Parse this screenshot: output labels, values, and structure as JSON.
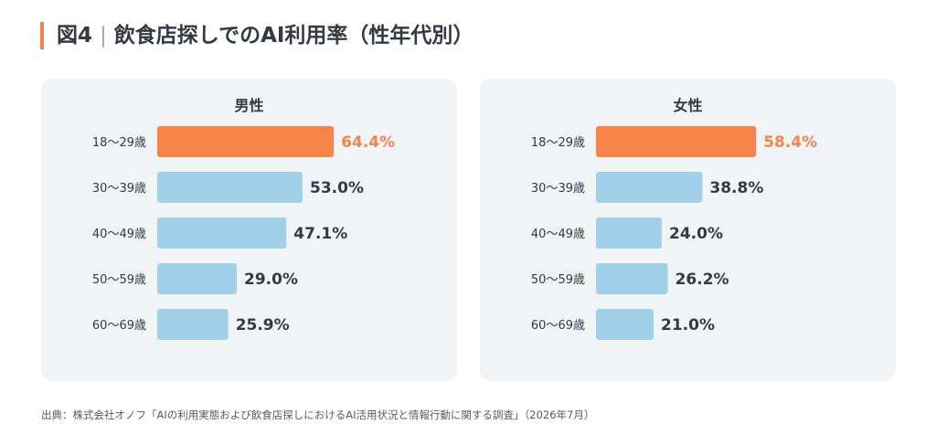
{
  "title": {
    "figure": "図4",
    "text": "飲食店探しでのAI利用率（性年代別）"
  },
  "colors": {
    "accent": "#f5834a",
    "bar": "#a1d1e9",
    "panel": "#f1f4f7",
    "label": "#333a44"
  },
  "chart_data": [
    {
      "type": "bar",
      "orientation": "horizontal",
      "title": "男性",
      "categories": [
        "18〜29歳",
        "30〜39歳",
        "40〜49歳",
        "50〜59歳",
        "60〜69歳"
      ],
      "values": [
        64.4,
        53.0,
        47.1,
        29.0,
        25.9
      ],
      "labels": [
        "64.4%",
        "53.0%",
        "47.1%",
        "29.0%",
        "25.9%"
      ],
      "highlight_index": 0
    },
    {
      "type": "bar",
      "orientation": "horizontal",
      "title": "女性",
      "categories": [
        "18〜29歳",
        "30〜39歳",
        "40〜49歳",
        "50〜59歳",
        "60〜69歳"
      ],
      "values": [
        58.4,
        38.8,
        24.0,
        26.2,
        21.0
      ],
      "labels": [
        "58.4%",
        "38.8%",
        "24.0%",
        "26.2%",
        "21.0%"
      ],
      "highlight_index": 0
    }
  ],
  "source": "出典：株式会社オノフ「AIの利用実態および飲食店探しにおけるAI活用状況と情報行動に関する調査」（2026年7月）"
}
